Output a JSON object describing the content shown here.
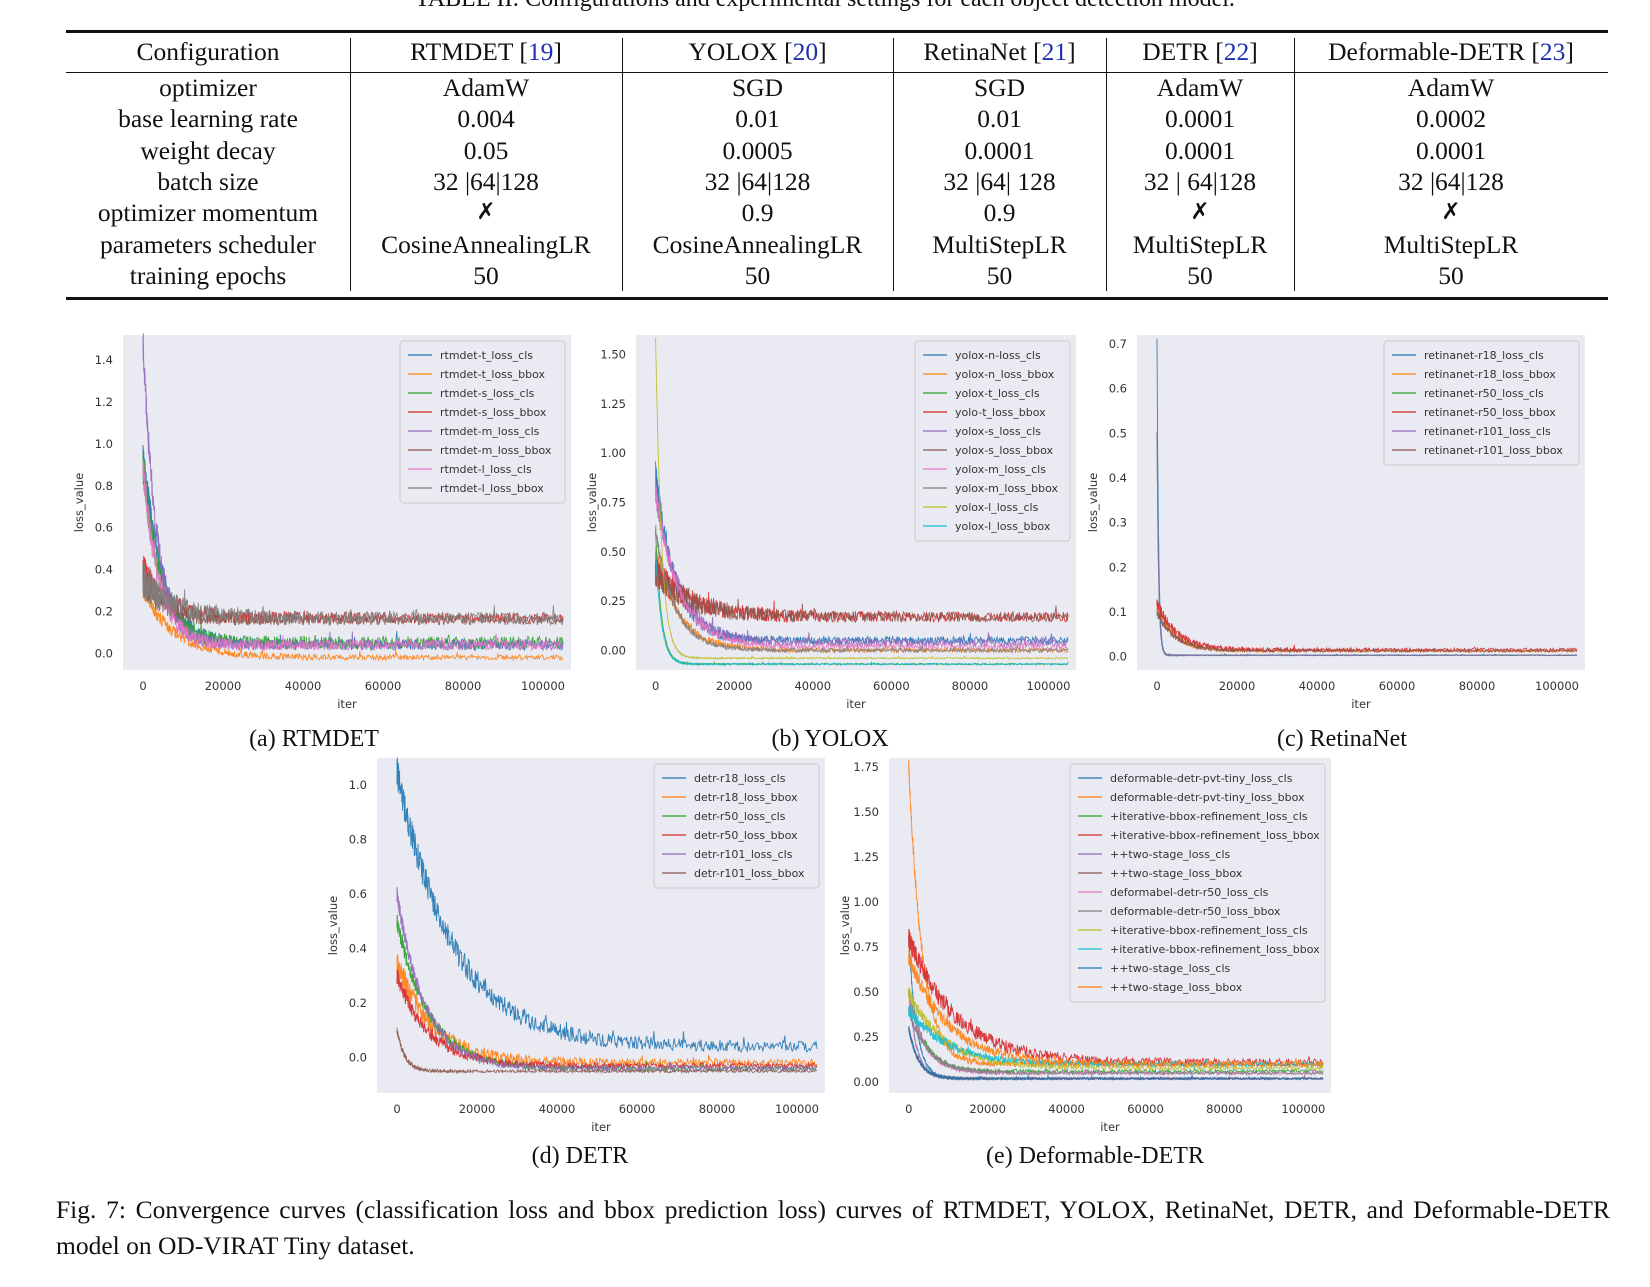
{
  "table": {
    "caption": "TABLE II: Configurations and experimental settings for each object detection model.",
    "headers": [
      {
        "name": "Configuration",
        "ref": ""
      },
      {
        "name": "RTMDET",
        "ref": "19"
      },
      {
        "name": "YOLOX",
        "ref": "20"
      },
      {
        "name": "RetinaNet",
        "ref": "21"
      },
      {
        "name": "DETR",
        "ref": "22"
      },
      {
        "name": "Deformable-DETR",
        "ref": "23"
      }
    ],
    "rows": [
      [
        "optimizer",
        "AdamW",
        "SGD",
        "SGD",
        "AdamW",
        "AdamW"
      ],
      [
        "base learning rate",
        "0.004",
        "0.01",
        "0.01",
        "0.0001",
        "0.0002"
      ],
      [
        "weight decay",
        "0.05",
        "0.0005",
        "0.0001",
        "0.0001",
        "0.0001"
      ],
      [
        "batch size",
        "32 |64|128",
        "32 |64|128",
        "32 |64| 128",
        "32 | 64|128",
        "32 |64|128"
      ],
      [
        "optimizer momentum",
        "✗",
        "0.9",
        "0.9",
        "✗",
        "✗"
      ],
      [
        "parameters scheduler",
        "CosineAnnealingLR",
        "CosineAnnealingLR",
        "MultiStepLR",
        "MultiStepLR",
        "MultiStepLR"
      ],
      [
        "training epochs",
        "50",
        "50",
        "50",
        "50",
        "50"
      ]
    ]
  },
  "plots": [
    {
      "id": "rtmdet",
      "subcaption": "(a) RTMDET",
      "chart_data": {
        "type": "line",
        "xlabel": "iter",
        "ylabel": "loss_value",
        "xlim": [
          -5000,
          107000
        ],
        "ylim": [
          -0.08,
          1.52
        ],
        "xticks": [
          0,
          20000,
          40000,
          60000,
          80000,
          100000
        ],
        "yticks": [
          0.0,
          0.2,
          0.4,
          0.6,
          0.8,
          1.0,
          1.2,
          1.4
        ],
        "ytick_labels": [
          "0.0",
          "0.2",
          "0.4",
          "0.6",
          "0.8",
          "1.0",
          "1.2",
          "1.4"
        ],
        "legend": "top-right",
        "grid": false,
        "series": [
          {
            "name": "rtmdet-t_loss_cls",
            "color": "#1f77b4",
            "start": 0.95,
            "end": 0.04,
            "decay": 5000,
            "noise": 0.025
          },
          {
            "name": "rtmdet-t_loss_bbox",
            "color": "#ff7f0e",
            "start": 0.3,
            "end": -0.02,
            "decay": 8000,
            "noise": 0.012
          },
          {
            "name": "rtmdet-s_loss_cls",
            "color": "#2ca02c",
            "start": 0.9,
            "end": 0.05,
            "decay": 4500,
            "noise": 0.03
          },
          {
            "name": "rtmdet-s_loss_bbox",
            "color": "#d62728",
            "start": 0.4,
            "end": 0.17,
            "decay": 6000,
            "noise": 0.025
          },
          {
            "name": "rtmdet-m_loss_cls",
            "color": "#9467bd",
            "start": 1.49,
            "end": 0.04,
            "decay": 3500,
            "noise": 0.025
          },
          {
            "name": "rtmdet-m_loss_bbox",
            "color": "#8c564b",
            "start": 0.35,
            "end": 0.16,
            "decay": 6000,
            "noise": 0.025
          },
          {
            "name": "rtmdet-l_loss_cls",
            "color": "#e377c2",
            "start": 0.9,
            "end": 0.04,
            "decay": 4000,
            "noise": 0.025
          },
          {
            "name": "rtmdet-l_loss_bbox",
            "color": "#7f7f7f",
            "start": 0.35,
            "end": 0.17,
            "decay": 7000,
            "noise": 0.028
          }
        ]
      }
    },
    {
      "id": "yolox",
      "subcaption": "(b) YOLOX",
      "chart_data": {
        "type": "line",
        "xlabel": "iter",
        "ylabel": "loss_value",
        "xlim": [
          -5000,
          107000
        ],
        "ylim": [
          -0.1,
          1.6
        ],
        "xticks": [
          0,
          20000,
          40000,
          60000,
          80000,
          100000
        ],
        "yticks": [
          0.0,
          0.25,
          0.5,
          0.75,
          1.0,
          1.25,
          1.5
        ],
        "ytick_labels": [
          "0.00",
          "0.25",
          "0.50",
          "0.75",
          "1.00",
          "1.25",
          "1.50"
        ],
        "legend": "top-right",
        "grid": false,
        "series": [
          {
            "name": "yolox-n-loss_cls",
            "color": "#1f77b4",
            "start": 0.9,
            "end": 0.05,
            "decay": 5000,
            "noise": 0.02
          },
          {
            "name": "yolox-n_loss_bbox",
            "color": "#ff7f0e",
            "start": 0.5,
            "end": 0.0,
            "decay": 6000,
            "noise": 0.012
          },
          {
            "name": "yolox-t_loss_cls",
            "color": "#2ca02c",
            "start": 0.6,
            "end": -0.07,
            "decay": 1500,
            "noise": 0.004
          },
          {
            "name": "yolo-t_loss_bbox",
            "color": "#d62728",
            "start": 0.4,
            "end": 0.17,
            "decay": 9000,
            "noise": 0.025
          },
          {
            "name": "yolox-s_loss_cls",
            "color": "#9467bd",
            "start": 0.8,
            "end": 0.04,
            "decay": 6000,
            "noise": 0.02
          },
          {
            "name": "yolox-s_loss_bbox",
            "color": "#8c564b",
            "start": 0.4,
            "end": 0.17,
            "decay": 9000,
            "noise": 0.025
          },
          {
            "name": "yolox-m_loss_cls",
            "color": "#e377c2",
            "start": 0.8,
            "end": 0.02,
            "decay": 6000,
            "noise": 0.015
          },
          {
            "name": "yolox-m_loss_bbox",
            "color": "#7f7f7f",
            "start": 0.6,
            "end": 0.0,
            "decay": 5000,
            "noise": 0.01
          },
          {
            "name": "yolox-l_loss_cls",
            "color": "#bcbd22",
            "start": 1.58,
            "end": -0.04,
            "decay": 1500,
            "noise": 0.004
          },
          {
            "name": "yolox-l_loss_bbox",
            "color": "#17becf",
            "start": 0.5,
            "end": -0.07,
            "decay": 1500,
            "noise": 0.004
          }
        ]
      }
    },
    {
      "id": "retinanet",
      "subcaption": "(c) RetinaNet",
      "chart_data": {
        "type": "line",
        "xlabel": "iter",
        "ylabel": "loss_value",
        "xlim": [
          -5000,
          107000
        ],
        "ylim": [
          -0.03,
          0.72
        ],
        "xticks": [
          0,
          20000,
          40000,
          60000,
          80000,
          100000
        ],
        "yticks": [
          0.0,
          0.1,
          0.2,
          0.3,
          0.4,
          0.5,
          0.6,
          0.7
        ],
        "ytick_labels": [
          "0.0",
          "0.1",
          "0.2",
          "0.3",
          "0.4",
          "0.5",
          "0.6",
          "0.7"
        ],
        "legend": "top-right",
        "grid": false,
        "series": [
          {
            "name": "retinanet-r18_loss_cls",
            "color": "#1f77b4",
            "start": 0.71,
            "end": 0.003,
            "decay": 400,
            "noise": 0.001
          },
          {
            "name": "retinanet-r18_loss_bbox",
            "color": "#ff7f0e",
            "start": 0.12,
            "end": 0.013,
            "decay": 4000,
            "noise": 0.003
          },
          {
            "name": "retinanet-r50_loss_cls",
            "color": "#2ca02c",
            "start": 0.5,
            "end": 0.003,
            "decay": 400,
            "noise": 0.001
          },
          {
            "name": "retinanet-r50_loss_bbox",
            "color": "#d62728",
            "start": 0.12,
            "end": 0.015,
            "decay": 5000,
            "noise": 0.004
          },
          {
            "name": "retinanet-r101_loss_cls",
            "color": "#9467bd",
            "start": 0.5,
            "end": 0.003,
            "decay": 400,
            "noise": 0.001
          },
          {
            "name": "retinanet-r101_loss_bbox",
            "color": "#8c564b",
            "start": 0.1,
            "end": 0.013,
            "decay": 4500,
            "noise": 0.003
          }
        ]
      }
    },
    {
      "id": "detr",
      "subcaption": "(d) DETR",
      "chart_data": {
        "type": "line",
        "xlabel": "iter",
        "ylabel": "loss_value",
        "xlim": [
          -5000,
          107000
        ],
        "ylim": [
          -0.13,
          1.1
        ],
        "xticks": [
          0,
          20000,
          40000,
          60000,
          80000,
          100000
        ],
        "yticks": [
          0.0,
          0.2,
          0.4,
          0.6,
          0.8,
          1.0
        ],
        "ytick_labels": [
          "0.0",
          "0.2",
          "0.4",
          "0.6",
          "0.8",
          "1.0"
        ],
        "legend": "top-right",
        "grid": false,
        "series": [
          {
            "name": "detr-r18_loss_cls",
            "color": "#1f77b4",
            "start": 1.05,
            "end": 0.04,
            "decay": 14000,
            "noise": 0.02
          },
          {
            "name": "detr-r18_loss_bbox",
            "color": "#ff7f0e",
            "start": 0.35,
            "end": -0.02,
            "decay": 9000,
            "noise": 0.015
          },
          {
            "name": "detr-r50_loss_cls",
            "color": "#2ca02c",
            "start": 0.5,
            "end": -0.04,
            "decay": 8000,
            "noise": 0.01
          },
          {
            "name": "detr-r50_loss_bbox",
            "color": "#d62728",
            "start": 0.3,
            "end": -0.03,
            "decay": 8000,
            "noise": 0.01
          },
          {
            "name": "detr-r101_loss_cls",
            "color": "#9467bd",
            "start": 0.6,
            "end": -0.04,
            "decay": 7000,
            "noise": 0.01
          },
          {
            "name": "detr-r101_loss_bbox",
            "color": "#8c564b",
            "start": 0.1,
            "end": -0.05,
            "decay": 2000,
            "noise": 0.005
          }
        ]
      }
    },
    {
      "id": "deformable-detr",
      "subcaption": "(e) Deformable-DETR",
      "chart_data": {
        "type": "line",
        "xlabel": "iter",
        "ylabel": "loss_value",
        "xlim": [
          -5000,
          107000
        ],
        "ylim": [
          -0.06,
          1.8
        ],
        "xticks": [
          0,
          20000,
          40000,
          60000,
          80000,
          100000
        ],
        "yticks": [
          0.0,
          0.25,
          0.5,
          0.75,
          1.0,
          1.25,
          1.5,
          1.75
        ],
        "ytick_labels": [
          "0.00",
          "0.25",
          "0.50",
          "0.75",
          "1.00",
          "1.25",
          "1.50",
          "1.75"
        ],
        "legend": "top-right",
        "grid": false,
        "series": [
          {
            "name": "deformable-detr-pvt-tiny_loss_cls",
            "color": "#1f77b4",
            "start": 0.8,
            "end": 0.02,
            "decay": 2000,
            "noise": 0.006
          },
          {
            "name": "deformable-detr-pvt-tiny_loss_bbox",
            "color": "#ff7f0e",
            "start": 1.75,
            "end": 0.1,
            "decay": 3500,
            "noise": 0.015
          },
          {
            "name": "+iterative-bbox-refinement_loss_cls",
            "color": "#2ca02c",
            "start": 0.5,
            "end": 0.06,
            "decay": 4000,
            "noise": 0.01
          },
          {
            "name": "+iterative-bbox-refinement_loss_bbox",
            "color": "#d62728",
            "start": 0.8,
            "end": 0.11,
            "decay": 12000,
            "noise": 0.02
          },
          {
            "name": "++two-stage_loss_cls",
            "color": "#9467bd",
            "start": 0.5,
            "end": 0.02,
            "decay": 2000,
            "noise": 0.006
          },
          {
            "name": "++two-stage_loss_bbox",
            "color": "#8c564b",
            "start": 0.3,
            "end": 0.02,
            "decay": 2500,
            "noise": 0.006
          },
          {
            "name": "deformabel-detr-r50_loss_cls",
            "color": "#e377c2",
            "start": 0.5,
            "end": 0.05,
            "decay": 4000,
            "noise": 0.008
          },
          {
            "name": "deformable-detr-r50_loss_bbox",
            "color": "#7f7f7f",
            "start": 0.4,
            "end": 0.05,
            "decay": 5000,
            "noise": 0.008
          },
          {
            "name": "+iterative-bbox-refinement_loss_cls",
            "color": "#bcbd22",
            "start": 0.5,
            "end": 0.08,
            "decay": 9000,
            "noise": 0.012
          },
          {
            "name": "+iterative-bbox-refinement_loss_bbox",
            "color": "#17becf",
            "start": 0.4,
            "end": 0.1,
            "decay": 10000,
            "noise": 0.012
          },
          {
            "name": "++two-stage_loss_cls",
            "color": "#1f77b4",
            "start": 0.3,
            "end": 0.02,
            "decay": 2500,
            "noise": 0.006
          },
          {
            "name": "++two-stage_loss_bbox",
            "color": "#ff7f0e",
            "start": 0.7,
            "end": 0.1,
            "decay": 10000,
            "noise": 0.015
          }
        ]
      }
    }
  ],
  "figure_caption": "Fig. 7: Convergence curves (classification loss and bbox prediction loss) curves of RTMDET, YOLOX, RetinaNet, DETR, and Deformable-DETR model on OD-VIRAT Tiny dataset."
}
